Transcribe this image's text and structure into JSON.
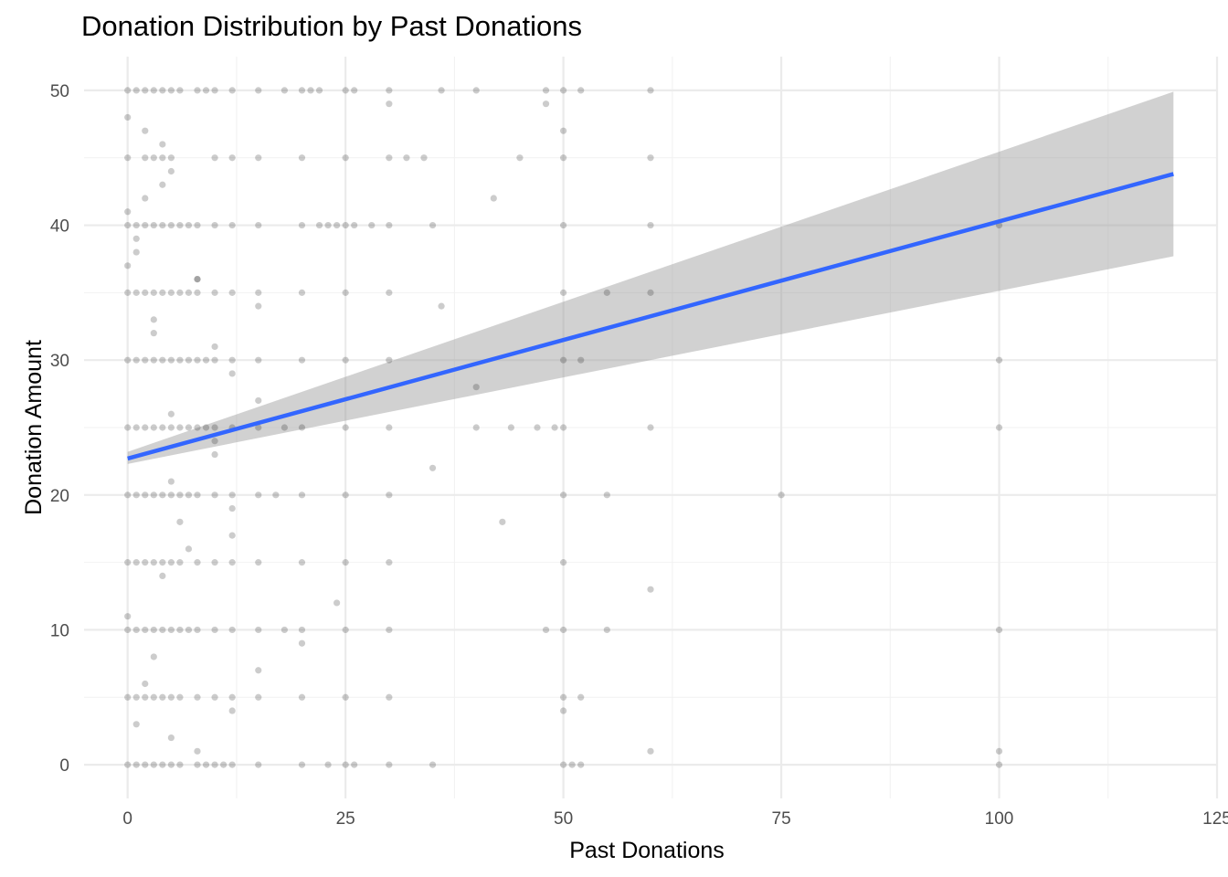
{
  "chart_data": {
    "type": "scatter",
    "title": "Donation Distribution by Past Donations",
    "xlabel": "Past Donations",
    "ylabel": "Donation Amount",
    "xlim": [
      -5,
      125
    ],
    "ylim": [
      -2.5,
      52.5
    ],
    "x_ticks": [
      0,
      25,
      50,
      75,
      100,
      125
    ],
    "y_ticks": [
      0,
      10,
      20,
      30,
      40,
      50
    ],
    "x_tick_labels": [
      "0",
      "25",
      "50",
      "75",
      "100",
      "125"
    ],
    "y_tick_labels": [
      "0",
      "10",
      "20",
      "30",
      "40",
      "50"
    ],
    "grid": true,
    "legend": "none",
    "point_color": "#000000",
    "point_alpha": 0.2,
    "trend_line": {
      "method": "linear",
      "color": "#3366ff",
      "x": [
        0,
        120
      ],
      "y": [
        22.7,
        43.8
      ],
      "ci_lower": [
        22.3,
        37.7
      ],
      "ci_upper": [
        23.2,
        49.9
      ],
      "ci_color": "#999999"
    },
    "points": {
      "x": [
        0,
        1,
        2,
        3,
        4,
        5,
        6,
        8,
        9,
        10,
        12,
        15,
        18,
        20,
        21,
        22,
        25,
        26,
        30,
        36,
        40,
        48,
        50,
        52,
        60,
        0,
        2,
        3,
        4,
        5,
        10,
        12,
        15,
        20,
        25,
        30,
        32,
        34,
        45,
        50,
        60,
        0,
        1,
        2,
        3,
        4,
        5,
        6,
        7,
        8,
        10,
        12,
        15,
        20,
        22,
        23,
        24,
        25,
        26,
        28,
        30,
        35,
        50,
        60,
        100,
        0,
        1,
        2,
        3,
        4,
        5,
        6,
        7,
        8,
        10,
        12,
        15,
        20,
        25,
        30,
        50,
        55,
        60,
        0,
        1,
        2,
        3,
        4,
        5,
        6,
        7,
        8,
        9,
        10,
        12,
        15,
        20,
        25,
        30,
        50,
        52,
        100,
        0,
        1,
        2,
        3,
        4,
        5,
        6,
        7,
        8,
        9,
        10,
        12,
        15,
        18,
        20,
        25,
        30,
        40,
        44,
        47,
        49,
        50,
        60,
        100,
        0,
        1,
        2,
        3,
        4,
        5,
        6,
        7,
        8,
        10,
        12,
        15,
        17,
        20,
        25,
        30,
        50,
        55,
        75,
        0,
        1,
        2,
        3,
        4,
        5,
        6,
        8,
        10,
        12,
        15,
        20,
        25,
        30,
        50,
        0,
        1,
        2,
        3,
        4,
        5,
        6,
        7,
        8,
        10,
        12,
        15,
        18,
        20,
        25,
        30,
        48,
        50,
        55,
        100,
        0,
        1,
        2,
        3,
        4,
        5,
        6,
        8,
        10,
        12,
        15,
        20,
        25,
        30,
        50,
        52,
        0,
        1,
        2,
        3,
        4,
        5,
        6,
        8,
        9,
        10,
        11,
        12,
        15,
        20,
        23,
        25,
        26,
        30,
        35,
        50,
        51,
        52,
        100,
        0,
        1,
        2,
        3,
        4,
        5,
        8,
        10,
        15,
        35,
        43,
        60,
        0,
        2,
        4,
        5,
        10,
        12,
        15,
        24,
        30,
        40,
        1,
        3,
        5,
        8,
        12,
        15,
        20,
        50,
        60,
        100,
        0,
        2,
        4,
        6,
        8,
        12,
        36,
        42,
        0,
        1,
        3,
        5,
        7,
        10,
        12,
        48,
        50
      ],
      "y": [
        50,
        50,
        50,
        50,
        50,
        50,
        50,
        50,
        50,
        50,
        50,
        50,
        50,
        50,
        50,
        50,
        50,
        50,
        50,
        50,
        50,
        50,
        50,
        50,
        50,
        45,
        45,
        45,
        45,
        45,
        45,
        45,
        45,
        45,
        45,
        45,
        45,
        45,
        45,
        45,
        45,
        40,
        40,
        40,
        40,
        40,
        40,
        40,
        40,
        40,
        40,
        40,
        40,
        40,
        40,
        40,
        40,
        40,
        40,
        40,
        40,
        40,
        40,
        40,
        40,
        35,
        35,
        35,
        35,
        35,
        35,
        35,
        35,
        35,
        35,
        35,
        35,
        35,
        35,
        35,
        35,
        35,
        35,
        30,
        30,
        30,
        30,
        30,
        30,
        30,
        30,
        30,
        30,
        30,
        30,
        30,
        30,
        30,
        30,
        30,
        30,
        30,
        25,
        25,
        25,
        25,
        25,
        25,
        25,
        25,
        25,
        25,
        25,
        25,
        25,
        25,
        25,
        25,
        25,
        25,
        25,
        25,
        25,
        25,
        25,
        25,
        20,
        20,
        20,
        20,
        20,
        20,
        20,
        20,
        20,
        20,
        20,
        20,
        20,
        20,
        20,
        20,
        20,
        20,
        20,
        15,
        15,
        15,
        15,
        15,
        15,
        15,
        15,
        15,
        15,
        15,
        15,
        15,
        15,
        15,
        10,
        10,
        10,
        10,
        10,
        10,
        10,
        10,
        10,
        10,
        10,
        10,
        10,
        10,
        10,
        10,
        10,
        10,
        10,
        10,
        5,
        5,
        5,
        5,
        5,
        5,
        5,
        5,
        5,
        5,
        5,
        5,
        5,
        5,
        5,
        5,
        0,
        0,
        0,
        0,
        0,
        0,
        0,
        0,
        0,
        0,
        0,
        0,
        0,
        0,
        0,
        0,
        0,
        0,
        0,
        0,
        0,
        0,
        0,
        48,
        38,
        42,
        33,
        46,
        44,
        36,
        31,
        27,
        22,
        18,
        13,
        41,
        47,
        43,
        26,
        23,
        29,
        34,
        12,
        49,
        28,
        3,
        8,
        2,
        1,
        4,
        7,
        9,
        4,
        1,
        1,
        11,
        6,
        14,
        18,
        36,
        19,
        34,
        42,
        37,
        39,
        32,
        21,
        16,
        24,
        17,
        49,
        47
      ]
    }
  }
}
